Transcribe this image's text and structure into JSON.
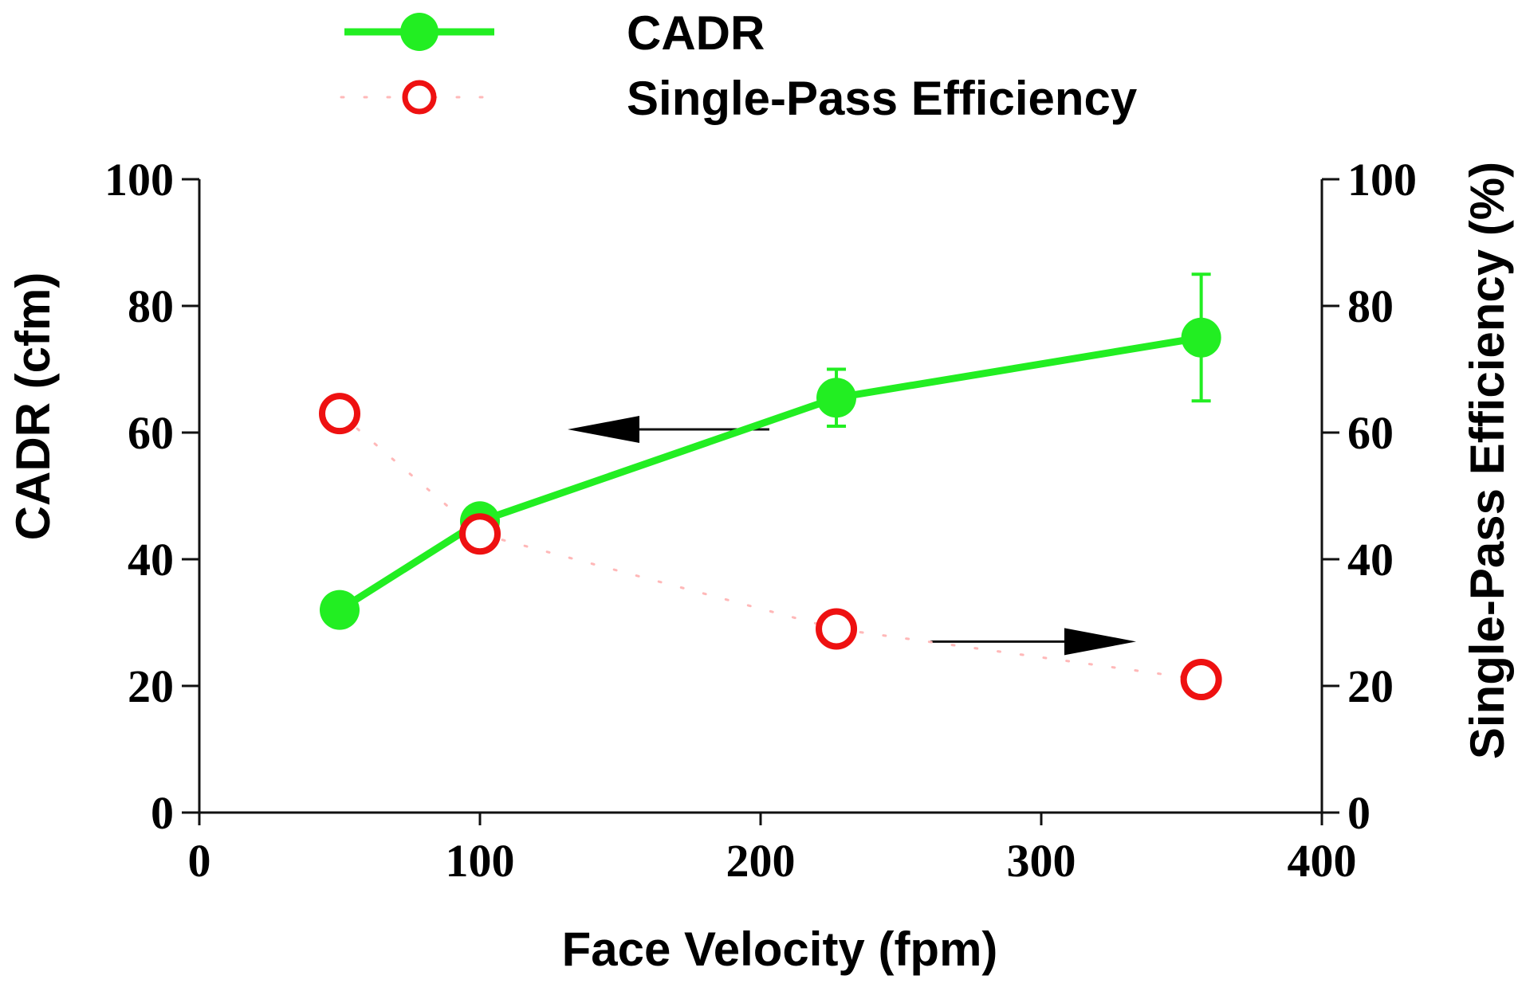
{
  "chart_data": {
    "type": "line",
    "xlabel": "Face Velocity (fpm)",
    "ylabel": "CADR (cfm)",
    "y2label": "Single-Pass Efficiency (%)",
    "xlim": [
      0,
      400
    ],
    "ylim": [
      0,
      100
    ],
    "y2lim": [
      0,
      100
    ],
    "x_ticks": [
      0,
      100,
      200,
      300,
      400
    ],
    "y_ticks": [
      0,
      20,
      40,
      60,
      80,
      100
    ],
    "y2_ticks": [
      0,
      20,
      40,
      60,
      80,
      100
    ],
    "grid": false,
    "legend_position": "top",
    "series": [
      {
        "name": "CADR",
        "axis": "left",
        "style": "solid line with filled circle markers",
        "color": "#22ee22",
        "x": [
          50,
          100,
          227,
          357
        ],
        "y": [
          32,
          46,
          65.5,
          75
        ],
        "error_bars": [
          0,
          0,
          4.5,
          10
        ]
      },
      {
        "name": "Single-Pass Efficiency",
        "axis": "right",
        "style": "faint dotted line with open circle markers",
        "color": "#ee1111",
        "x": [
          50,
          100,
          227,
          357
        ],
        "y": [
          63,
          44,
          29,
          21
        ]
      }
    ],
    "annotations": [
      {
        "type": "arrow",
        "direction": "left",
        "points_to": "left axis",
        "series": "CADR"
      },
      {
        "type": "arrow",
        "direction": "right",
        "points_to": "right axis",
        "series": "Single-Pass Efficiency"
      }
    ]
  }
}
